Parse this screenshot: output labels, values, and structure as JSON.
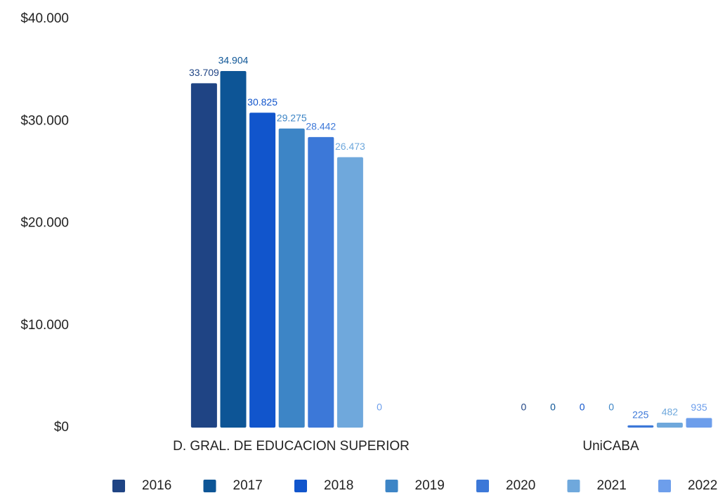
{
  "chart_data": {
    "type": "bar",
    "categories": [
      "D. GRAL. DE EDUCACION SUPERIOR",
      "UniCABA"
    ],
    "series": [
      {
        "name": "2016",
        "color": "#1f4484",
        "values": [
          33709,
          0
        ],
        "value_labels": [
          "33.709",
          "0"
        ]
      },
      {
        "name": "2017",
        "color": "#0d5596",
        "values": [
          34904,
          0
        ],
        "value_labels": [
          "34.904",
          "0"
        ]
      },
      {
        "name": "2018",
        "color": "#1155cc",
        "values": [
          30825,
          0
        ],
        "value_labels": [
          "30.825",
          "0"
        ]
      },
      {
        "name": "2019",
        "color": "#3d85c6",
        "values": [
          29275,
          0
        ],
        "value_labels": [
          "29.275",
          "0"
        ]
      },
      {
        "name": "2020",
        "color": "#3c78d8",
        "values": [
          28442,
          225
        ],
        "value_labels": [
          "28.442",
          "225"
        ]
      },
      {
        "name": "2021",
        "color": "#6fa8dc",
        "values": [
          26473,
          482
        ],
        "value_labels": [
          "26.473",
          "482"
        ]
      },
      {
        "name": "2022",
        "color": "#6d9eeb",
        "values": [
          0,
          935
        ],
        "value_labels": [
          "0",
          "935"
        ]
      }
    ],
    "ylim": [
      0,
      40000
    ],
    "yticks": [
      {
        "value": 0,
        "label": "$0"
      },
      {
        "value": 10000,
        "label": "$10.000"
      },
      {
        "value": 20000,
        "label": "$20.000"
      },
      {
        "value": 30000,
        "label": "$30.000"
      },
      {
        "value": 40000,
        "label": "$40.000"
      }
    ],
    "grid": false,
    "legend": "bottom"
  }
}
